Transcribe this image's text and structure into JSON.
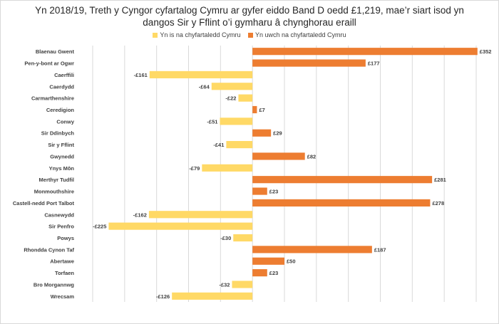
{
  "chart_data": {
    "type": "bar",
    "orientation": "horizontal",
    "title_lines": [
      "Yn 2018/19, Treth y Cyngor cyfartalog Cymru ar gyfer eiddo Band D oedd £1,219, mae’r siart isod yn",
      "dangos Sir y Fflint o’i gymharu â chynghorau eraill"
    ],
    "legend": {
      "position": "top",
      "items": [
        {
          "label": "Yn is na chyfartaledd Cymru",
          "color": "#FFD966"
        },
        {
          "label": "Yn uwch na chyfartaledd Cymru",
          "color": "#ED7D31"
        }
      ]
    },
    "categories": [
      "Blaenau Gwent",
      "Pen-y-bont ar Ogwr",
      "Caerffili",
      "Caerdydd",
      "Carmarthenshire",
      "Ceredigion",
      "Conwy",
      "Sir Ddinbych",
      "Sir y Fflint",
      "Gwynedd",
      "Ynys Môn",
      "Merthyr Tudfil",
      "Monmouthshire",
      "Castell-nedd Port Talbot",
      "Casnewydd",
      "Sir Penfro",
      "Powys",
      "Rhondda Cynon Taf",
      "Abertawe",
      "Torfaen",
      "Bro Morgannwg",
      "Wrecsam"
    ],
    "values": [
      352,
      177,
      -161,
      -64,
      -22,
      7,
      -51,
      29,
      -41,
      82,
      -79,
      281,
      23,
      278,
      -162,
      -225,
      -30,
      187,
      50,
      23,
      -32,
      -126
    ],
    "data_labels": [
      "£352",
      "£177",
      "-£161",
      "-£64",
      "-£22",
      "£7",
      "-£51",
      "£29",
      "-£41",
      "£82",
      "-£79",
      "£281",
      "£23",
      "£278",
      "-£162",
      "-£225",
      "-£30",
      "£187",
      "£50",
      "£23",
      "-£32",
      "-£126"
    ],
    "xlim": [
      -250,
      350
    ],
    "grid_step": 50,
    "grid": true,
    "colors": {
      "negative": "#FFD966",
      "positive": "#ED7D31",
      "grid": "#d9d9d9"
    }
  }
}
